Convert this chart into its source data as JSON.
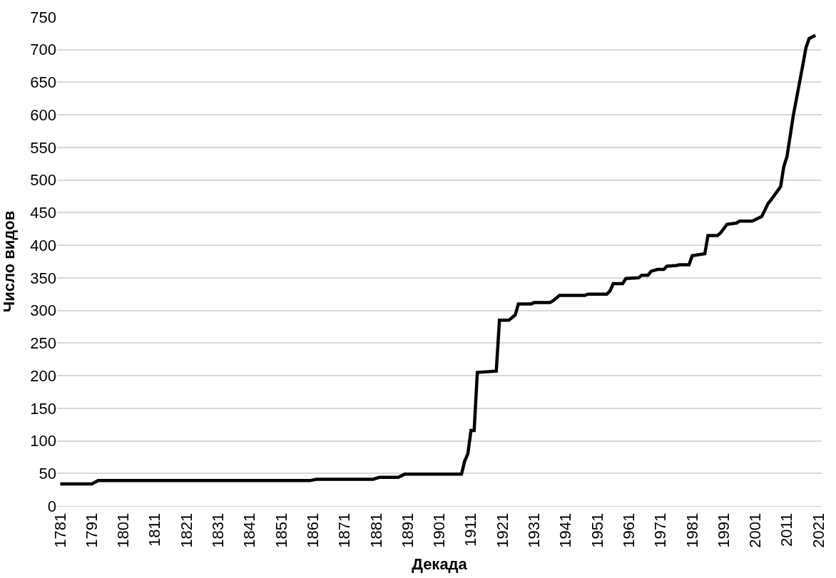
{
  "chart_data": {
    "type": "line",
    "xlabel": "Декада",
    "ylabel": "Число видов",
    "x": [
      1781,
      1791,
      1793,
      1860,
      1862,
      1880,
      1882,
      1888,
      1890,
      1908,
      1909,
      1910,
      1911,
      1912,
      1913,
      1919,
      1920,
      1923,
      1925,
      1926,
      1930,
      1931,
      1936,
      1937,
      1939,
      1947,
      1948,
      1954,
      1955,
      1956,
      1959,
      1960,
      1964,
      1965,
      1967,
      1968,
      1970,
      1972,
      1973,
      1976,
      1977,
      1980,
      1981,
      1985,
      1986,
      1989,
      1990,
      1992,
      1995,
      1996,
      2000,
      2003,
      2005,
      2006,
      2009,
      2010,
      2011,
      2013,
      2016,
      2017,
      2018,
      2020
    ],
    "series": [
      {
        "color": "#000000",
        "values": [
          34,
          34,
          39,
          39,
          41,
          41,
          44,
          44,
          49,
          49,
          69,
          80,
          116,
          116,
          205,
          207,
          285,
          285,
          293,
          310,
          310,
          312,
          312,
          315,
          323,
          323,
          325,
          325,
          330,
          341,
          341,
          349,
          350,
          354,
          354,
          360,
          363,
          363,
          368,
          369,
          370,
          370,
          384,
          387,
          415,
          415,
          419,
          432,
          434,
          437,
          437,
          444,
          464,
          470,
          490,
          521,
          536,
          599,
          676,
          703,
          717,
          722
        ]
      }
    ],
    "xlim": [
      1780,
      2022
    ],
    "xticks": [
      1781,
      1791,
      1801,
      1811,
      1821,
      1831,
      1841,
      1851,
      1861,
      1871,
      1881,
      1891,
      1901,
      1911,
      1921,
      1931,
      1941,
      1951,
      1961,
      1971,
      1981,
      1991,
      2001,
      2011,
      2021
    ],
    "ylim": [
      0,
      750
    ],
    "yticks": [
      0,
      50,
      100,
      150,
      200,
      250,
      300,
      350,
      400,
      450,
      500,
      550,
      600,
      650,
      700,
      750
    ],
    "grid": "y",
    "marker": "none",
    "line_style": "solid"
  }
}
